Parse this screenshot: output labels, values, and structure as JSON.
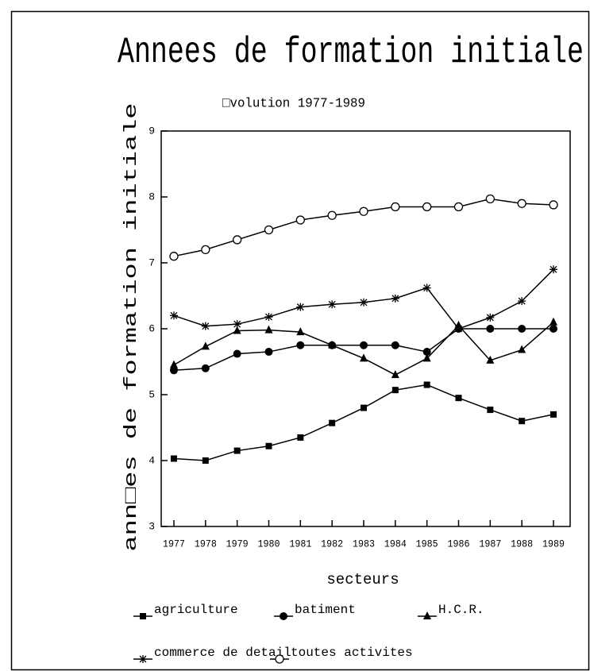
{
  "chart_data": {
    "type": "line",
    "title": "Annees de formation initiale",
    "subtitle": "□volution 1977-1989",
    "y_label": "ann□es de formation initiale",
    "x_label": "secteurs",
    "categories": [
      "1977",
      "1978",
      "1979",
      "1980",
      "1981",
      "1982",
      "1983",
      "1984",
      "1985",
      "1986",
      "1987",
      "1988",
      "1989"
    ],
    "ylim": [
      3,
      9
    ],
    "yticks": [
      3,
      4,
      5,
      6,
      7,
      8,
      9
    ],
    "series": [
      {
        "name": "agriculture",
        "color": "#000000",
        "marker": "square",
        "values": [
          4.03,
          4.0,
          4.15,
          4.22,
          4.35,
          4.57,
          4.8,
          5.07,
          5.15,
          4.95,
          4.77,
          4.6,
          4.7
        ]
      },
      {
        "name": "batiment",
        "color": "#000000",
        "marker": "filled-circle",
        "values": [
          5.37,
          5.4,
          5.62,
          5.65,
          5.75,
          5.75,
          5.75,
          5.75,
          5.65,
          6.0,
          6.0,
          6.0,
          6.0
        ]
      },
      {
        "name": "H.C.R.",
        "color": "#000000",
        "marker": "triangle",
        "values": [
          5.45,
          5.73,
          5.97,
          5.98,
          5.95,
          5.75,
          5.55,
          5.3,
          5.55,
          6.05,
          5.52,
          5.68,
          6.1
        ]
      },
      {
        "name": "commerce de detail",
        "color": "#000000",
        "marker": "asterisk",
        "values": [
          6.2,
          6.04,
          6.07,
          6.18,
          6.33,
          6.37,
          6.4,
          6.46,
          6.62,
          6.0,
          6.17,
          6.42,
          6.9
        ]
      },
      {
        "name": "toutes activites",
        "color": "#000000",
        "marker": "open-circle",
        "values": [
          7.1,
          7.2,
          7.35,
          7.5,
          7.65,
          7.72,
          7.78,
          7.85,
          7.85,
          7.85,
          7.97,
          7.9,
          7.88
        ]
      }
    ]
  }
}
